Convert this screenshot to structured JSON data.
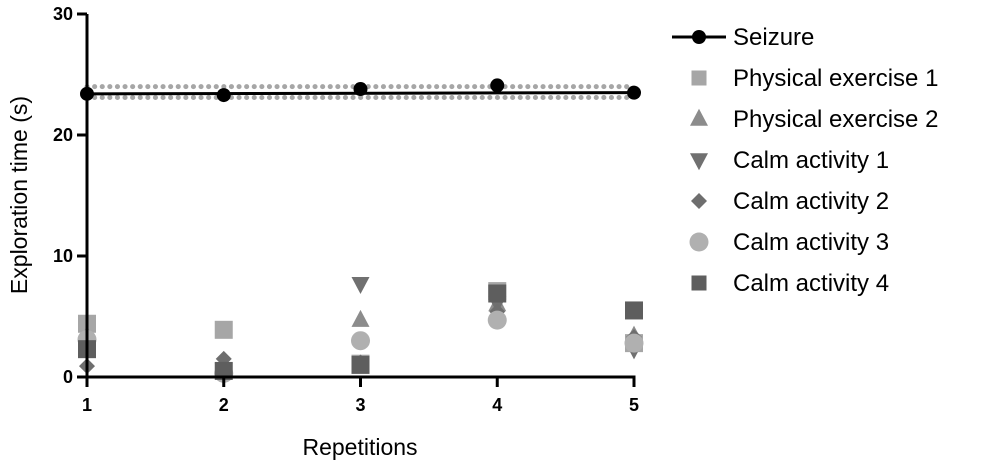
{
  "chart_data": {
    "type": "scatter",
    "title": "",
    "xlabel": "Repetitions",
    "ylabel": "Exploration time (s)",
    "x": [
      1,
      2,
      3,
      4,
      5
    ],
    "xlim": [
      1,
      5
    ],
    "ylim": [
      0,
      30
    ],
    "x_ticks": [
      "1",
      "2",
      "3",
      "4",
      "5"
    ],
    "y_ticks": [
      "0",
      "10",
      "20",
      "30"
    ],
    "grid": false,
    "legend_position": "right",
    "reference_band": {
      "lower": 23.1,
      "upper": 24.0,
      "style": "dotted",
      "color": "#a6a6a6"
    },
    "series": [
      {
        "name": "Seizure",
        "marker": "circle-line",
        "color": "#000000",
        "values": [
          23.4,
          23.3,
          23.8,
          24.1,
          23.5
        ]
      },
      {
        "name": "Physical exercise 1",
        "marker": "square",
        "color": "#a6a6a6",
        "values": [
          4.4,
          3.9,
          1.1,
          7.1,
          2.8
        ]
      },
      {
        "name": "Physical exercise 2",
        "marker": "triangle-up",
        "color": "#8c8c8c",
        "values": [
          3.4,
          0.9,
          4.7,
          6.0,
          3.4
        ]
      },
      {
        "name": "Calm activity 1",
        "marker": "triangle-down",
        "color": "#707070",
        "values": [
          2.7,
          0.6,
          7.7,
          6.1,
          2.3
        ]
      },
      {
        "name": "Calm activity 2",
        "marker": "diamond",
        "color": "#6e6e6e",
        "values": [
          0.9,
          1.5,
          1.2,
          5.4,
          3.3
        ]
      },
      {
        "name": "Calm activity 3",
        "marker": "circle",
        "color": "#b0b0b0",
        "values": [
          3.1,
          0.3,
          3.0,
          4.7,
          2.8
        ]
      },
      {
        "name": "Calm activity 4",
        "marker": "square",
        "color": "#5e5e5e",
        "values": [
          2.3,
          0.5,
          1.0,
          6.9,
          5.5
        ]
      }
    ]
  }
}
